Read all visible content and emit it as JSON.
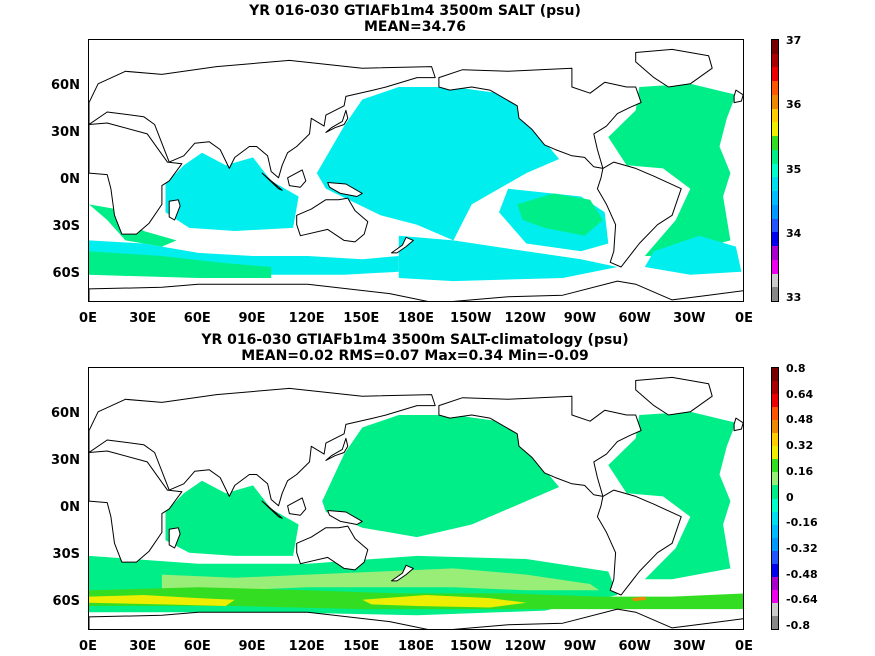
{
  "colors": {
    "ocean_main": "#00eeee",
    "ocean_alt": "#00ee88",
    "land": "#ffffff",
    "coast": "#000000",
    "diff_light": "#99ee77",
    "diff_green": "#33dd22",
    "diff_yellow": "#eeee00",
    "diff_orange": "#ee8800"
  },
  "panels": [
    {
      "title_line1": "YR 016-030 GTIAFb1m4 3500m SALT (psu)",
      "title_line2": "MEAN=34.76",
      "lat_labels": [
        "60N",
        "30N",
        "0N",
        "30S",
        "60S"
      ],
      "lon_labels": [
        "0E",
        "30E",
        "60E",
        "90E",
        "120E",
        "150E",
        "180E",
        "150W",
        "120W",
        "90W",
        "60W",
        "30W",
        "0E"
      ],
      "colorbar": {
        "tick_labels": [
          "37",
          "36",
          "35",
          "34",
          "33"
        ],
        "colors": [
          "#888888",
          "#cccccc",
          "#ee00ee",
          "#aa00cc",
          "#0000ee",
          "#2255ff",
          "#0099ff",
          "#00bbff",
          "#00ddee",
          "#00ffcc",
          "#00ee88",
          "#33dd22",
          "#eeee00",
          "#ffcc00",
          "#ee8800",
          "#ff5500",
          "#ee0000",
          "#aa0000",
          "#770000"
        ]
      }
    },
    {
      "title_line1": "YR 016-030 GTIAFb1m4 3500m SALT-climatology (psu)",
      "title_line2": "MEAN=0.02   RMS=0.07   Max=0.34   Min=-0.09",
      "lat_labels": [
        "60N",
        "30N",
        "0N",
        "30S",
        "60S"
      ],
      "lon_labels": [
        "0E",
        "30E",
        "60E",
        "90E",
        "120E",
        "150E",
        "180E",
        "150W",
        "120W",
        "90W",
        "60W",
        "30W",
        "0E"
      ],
      "colorbar": {
        "tick_labels": [
          "0.8",
          "0.64",
          "0.48",
          "0.32",
          "0.16",
          "0",
          "-0.16",
          "-0.32",
          "-0.48",
          "-0.64",
          "-0.8"
        ],
        "colors": [
          "#888888",
          "#cccccc",
          "#ee00ee",
          "#aa00cc",
          "#0000ee",
          "#2255ff",
          "#0099ff",
          "#00bbff",
          "#00ddee",
          "#00ffcc",
          "#00ee88",
          "#99ee77",
          "#33dd22",
          "#eeee00",
          "#ffcc00",
          "#ee8800",
          "#ff5500",
          "#ee0000",
          "#aa0000",
          "#770000"
        ]
      }
    }
  ]
}
